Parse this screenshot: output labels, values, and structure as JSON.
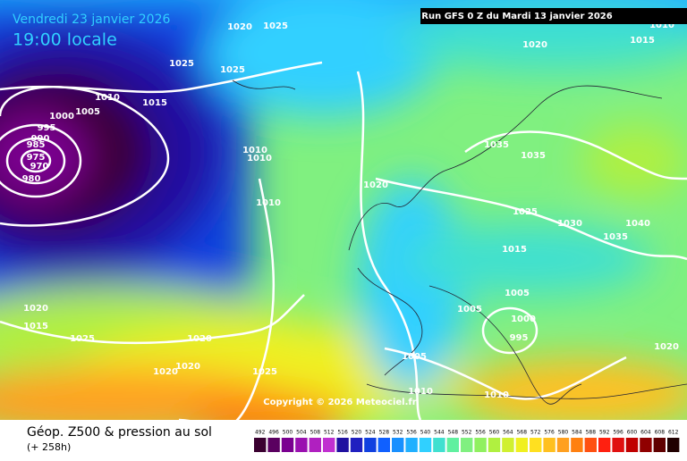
{
  "header": {
    "valid_date": "Vendredi 23 janvier 2026",
    "valid_time": "19:00 locale",
    "run": "Run GFS 0 Z du Mardi 13 janvier 2026"
  },
  "map": {
    "copyright": "Copyright © 2026 Meteociel.fr",
    "isobar_labels": [
      1020,
      1025,
      1020,
      1015,
      1010,
      1025,
      1025,
      1010,
      1015,
      1005,
      1000,
      995,
      990,
      985,
      975,
      970,
      980,
      1010,
      1010,
      1035,
      1035,
      1020,
      1010,
      1025,
      1030,
      1040,
      1035,
      1015,
      1005,
      1005,
      1000,
      995,
      1020,
      1015,
      1025,
      1020,
      1020,
      1020,
      1020,
      1025,
      1005,
      1010,
      1010
    ]
  },
  "footer": {
    "title": "Géop. Z500 & pression au sol",
    "lead": "(+ 258h)"
  },
  "scale": {
    "values": [
      492,
      496,
      500,
      504,
      508,
      512,
      516,
      520,
      524,
      528,
      532,
      536,
      540,
      544,
      548,
      552,
      556,
      560,
      564,
      568,
      572,
      576,
      580,
      584,
      588,
      592,
      596,
      600,
      604,
      608,
      612
    ],
    "colors": [
      "#3a0030",
      "#5a0060",
      "#7a0090",
      "#9a10b0",
      "#b020c0",
      "#c030d0",
      "#2010a0",
      "#2020c0",
      "#1040e0",
      "#1060ff",
      "#1890ff",
      "#20b0ff",
      "#30d0ff",
      "#40e0d0",
      "#60f0a0",
      "#80f080",
      "#90f060",
      "#b0f040",
      "#d0f030",
      "#f0f020",
      "#ffe020",
      "#ffc020",
      "#ffa020",
      "#ff8010",
      "#ff5010",
      "#ff2010",
      "#e01010",
      "#c00000",
      "#900000",
      "#600000",
      "#200000"
    ]
  }
}
